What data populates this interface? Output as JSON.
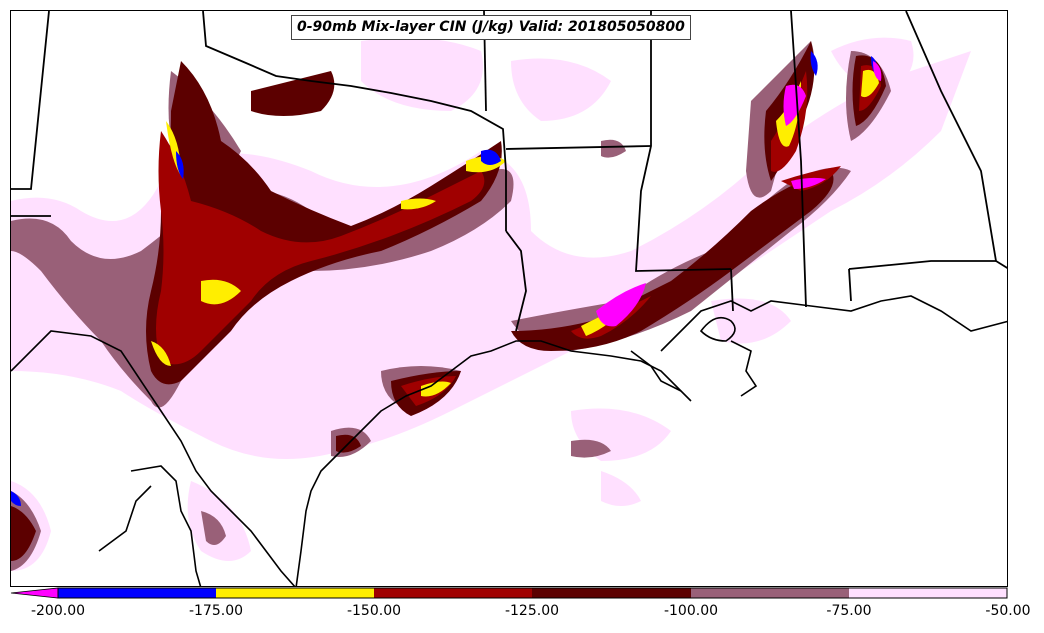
{
  "title": "0-90mb Mix-layer CIN (J/kg) Valid: 201805050800",
  "colorbar": {
    "tick_labels": [
      "-200.00",
      "-175.00",
      "-150.00",
      "-125.00",
      "-100.00",
      "-75.00",
      "-50.00"
    ],
    "colors": [
      "#ff00ff",
      "#0000ff",
      "#ffee00",
      "#a00000",
      "#5c0000",
      "#996078",
      "#ffe0ff"
    ],
    "under_arrow_color": "#ff00ff"
  },
  "palette": {
    "lt_pink": "#ffe0ff",
    "mauve": "#996078",
    "dark_red": "#5c0000",
    "red": "#a00000",
    "yellow": "#ffee00",
    "blue": "#0000ff",
    "magenta": "#ff00ff"
  }
}
